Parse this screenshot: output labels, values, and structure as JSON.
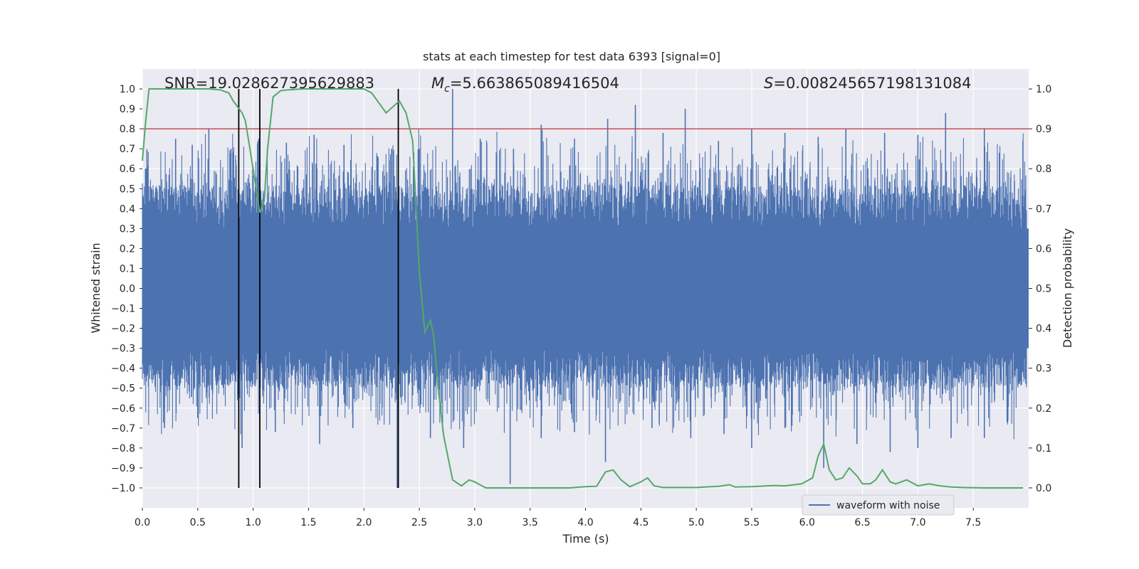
{
  "chart_data": {
    "type": "line",
    "title": "stats at each timestep for test data 6393 [signal=0]",
    "xlabel": "Time (s)",
    "ylabel": "Whitened strain",
    "y2label": "Detection probability",
    "xlim": [
      0.0,
      8.0
    ],
    "ylim": [
      -1.1,
      1.1
    ],
    "y2lim": [
      -0.05,
      1.05
    ],
    "x_ticks": [
      "0.0",
      "0.5",
      "1.0",
      "1.5",
      "2.0",
      "2.5",
      "3.0",
      "3.5",
      "4.0",
      "4.5",
      "5.0",
      "5.5",
      "6.0",
      "6.5",
      "7.0",
      "7.5"
    ],
    "y_ticks": [
      "1.0",
      "0.9",
      "0.8",
      "0.7",
      "0.6",
      "0.5",
      "0.4",
      "0.3",
      "0.2",
      "0.1",
      "0.0",
      "−0.1",
      "−0.2",
      "−0.3",
      "−0.4",
      "−0.5",
      "−0.6",
      "−0.7",
      "−0.8",
      "−0.9",
      "−1.0"
    ],
    "y2_ticks": [
      "1.0",
      "0.9",
      "0.8",
      "0.7",
      "0.6",
      "0.5",
      "0.4",
      "0.3",
      "0.2",
      "0.1",
      "0.0"
    ],
    "annotations": {
      "snr": "SNR=19.028627395629883",
      "mc_symbol": "M",
      "mc_sub": "c",
      "mc_value": "=5.663865089416504",
      "s_symbol": "S",
      "s_value": "=0.008245657198131084"
    },
    "legend": {
      "label": "waveform with noise",
      "position": "lower-right"
    },
    "threshold": {
      "y2": 0.9,
      "color": "#c44e52"
    },
    "vlines_x": [
      0.87,
      1.06,
      2.31
    ],
    "series": [
      {
        "name": "waveform with noise",
        "axis": "left",
        "color": "#4c72b0",
        "note": "dense whitened-strain noise, mostly within ±0.4, spikes to ~±1.0",
        "peaks_x": [
          0.08,
          0.3,
          0.45,
          0.6,
          0.8,
          1.05,
          1.3,
          1.55,
          1.82,
          2.25,
          2.5,
          2.8,
          3.05,
          3.35,
          3.6,
          3.9,
          4.2,
          4.45,
          4.7,
          4.9,
          5.2,
          5.5,
          5.8,
          6.1,
          6.35,
          6.7,
          7.0,
          7.25,
          7.6
        ],
        "peaks_y": [
          0.5,
          0.75,
          0.72,
          0.8,
          0.7,
          0.75,
          0.73,
          0.77,
          0.72,
          0.7,
          0.7,
          1.0,
          0.75,
          0.7,
          0.82,
          0.75,
          0.85,
          0.92,
          0.78,
          0.9,
          0.74,
          0.8,
          0.78,
          0.76,
          0.8,
          0.78,
          0.77,
          0.88,
          0.8
        ],
        "troughs_x": [
          0.2,
          0.5,
          0.9,
          1.2,
          1.6,
          1.9,
          2.3,
          2.6,
          2.9,
          3.32,
          3.6,
          3.9,
          4.18,
          4.6,
          4.95,
          5.25,
          5.5,
          5.8,
          6.15,
          6.45,
          6.75,
          7.0,
          7.3,
          7.6
        ],
        "troughs_y": [
          -0.7,
          -0.65,
          -0.8,
          -0.72,
          -0.78,
          -0.7,
          -1.0,
          -0.75,
          -0.8,
          -0.98,
          -0.75,
          -0.72,
          -0.87,
          -0.7,
          -0.75,
          -0.73,
          -0.8,
          -0.7,
          -0.9,
          -0.78,
          -0.82,
          -0.8,
          -0.75,
          -0.75
        ]
      },
      {
        "name": "detection probability",
        "axis": "right",
        "color": "#55a868",
        "x": [
          0.0,
          0.03,
          0.06,
          0.12,
          0.2,
          0.3,
          0.45,
          0.6,
          0.7,
          0.78,
          0.82,
          0.9,
          0.93,
          1.0,
          1.06,
          1.1,
          1.13,
          1.18,
          1.25,
          1.32,
          1.45,
          1.6,
          1.8,
          2.0,
          2.07,
          2.2,
          2.32,
          2.38,
          2.44,
          2.5,
          2.55,
          2.6,
          2.63,
          2.67,
          2.72,
          2.8,
          2.88,
          2.95,
          3.0,
          3.1,
          3.3,
          3.6,
          3.85,
          4.0,
          4.1,
          4.18,
          4.25,
          4.32,
          4.4,
          4.5,
          4.56,
          4.62,
          4.7,
          5.0,
          5.2,
          5.3,
          5.35,
          5.5,
          5.7,
          5.8,
          5.95,
          6.05,
          6.1,
          6.15,
          6.2,
          6.26,
          6.32,
          6.38,
          6.45,
          6.5,
          6.57,
          6.62,
          6.68,
          6.75,
          6.8,
          6.9,
          7.0,
          7.1,
          7.2,
          7.3,
          7.4,
          7.6,
          7.7,
          7.95
        ],
        "y": [
          0.82,
          0.92,
          1.0,
          1.0,
          1.0,
          1.0,
          1.0,
          1.0,
          0.998,
          0.99,
          0.97,
          0.94,
          0.92,
          0.8,
          0.69,
          0.72,
          0.85,
          0.98,
          0.996,
          0.998,
          1.0,
          1.0,
          1.0,
          1.0,
          0.99,
          0.94,
          0.97,
          0.94,
          0.87,
          0.54,
          0.39,
          0.42,
          0.38,
          0.25,
          0.13,
          0.02,
          0.005,
          0.02,
          0.015,
          0.0,
          0.0,
          0.0,
          0.0,
          0.003,
          0.004,
          0.04,
          0.045,
          0.02,
          0.003,
          0.015,
          0.025,
          0.005,
          0.001,
          0.001,
          0.004,
          0.008,
          0.002,
          0.003,
          0.006,
          0.005,
          0.01,
          0.025,
          0.08,
          0.11,
          0.045,
          0.02,
          0.025,
          0.05,
          0.03,
          0.01,
          0.01,
          0.02,
          0.045,
          0.015,
          0.01,
          0.02,
          0.005,
          0.01,
          0.005,
          0.002,
          0.001,
          0.0,
          0.0,
          0.0
        ]
      }
    ]
  }
}
